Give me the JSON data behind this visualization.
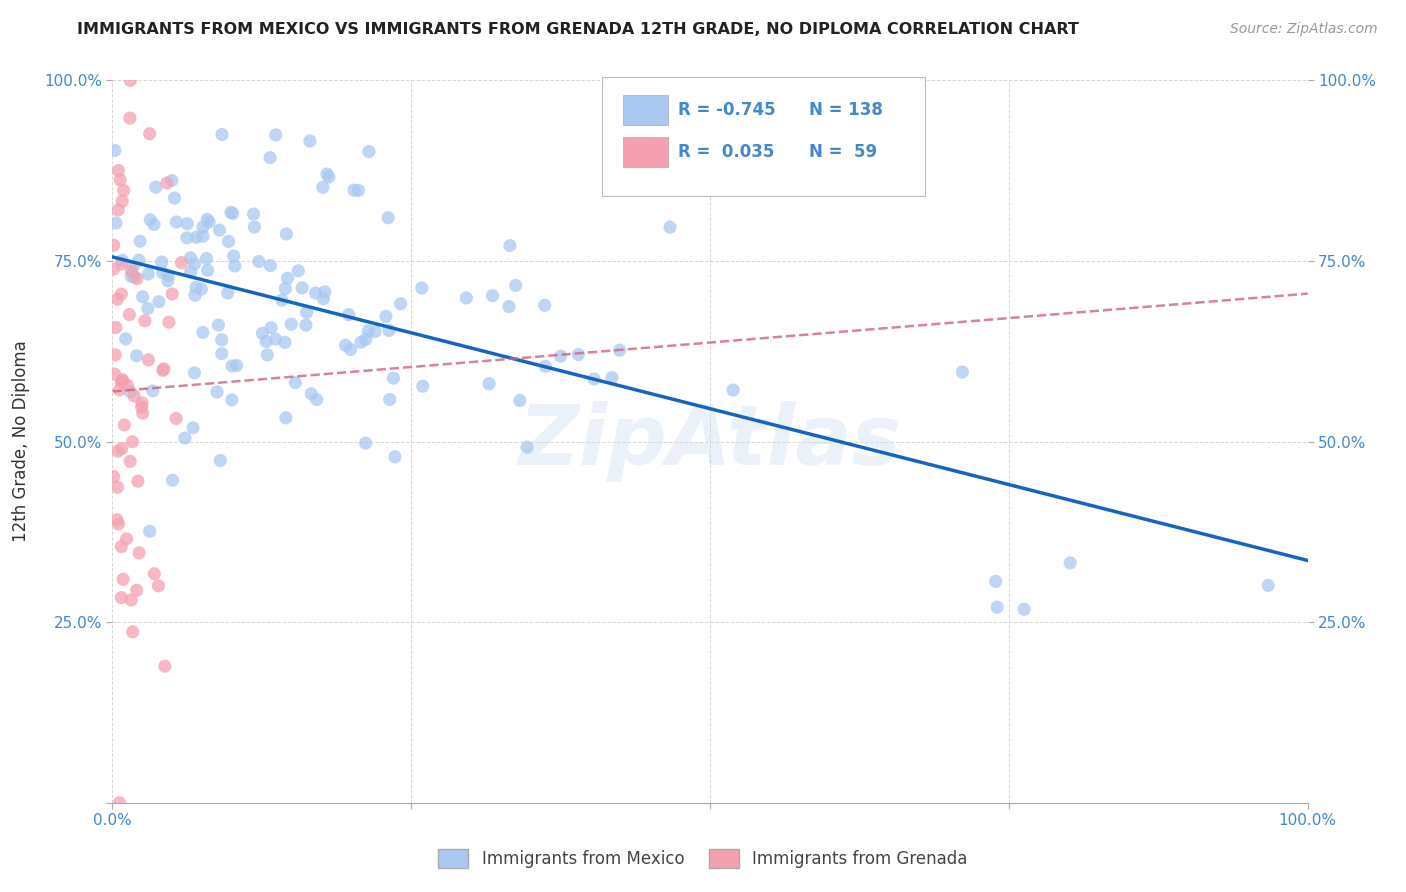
{
  "title": "IMMIGRANTS FROM MEXICO VS IMMIGRANTS FROM GRENADA 12TH GRADE, NO DIPLOMA CORRELATION CHART",
  "source": "Source: ZipAtlas.com",
  "ylabel": "12th Grade, No Diploma",
  "mexico_R": -0.745,
  "mexico_N": 138,
  "grenada_R": 0.035,
  "grenada_N": 59,
  "mexico_color": "#a8c8f0",
  "mexico_line_color": "#1565c0",
  "grenada_color": "#f4a0b0",
  "grenada_line_color": "#d46080",
  "background_color": "#ffffff",
  "grid_color": "#cccccc",
  "legend_box_mexico": "#a8c8f0",
  "legend_box_grenada": "#f4a0b0",
  "tick_color": "#4488cc",
  "label_color": "#333333",
  "watermark": "ZipAtlas"
}
